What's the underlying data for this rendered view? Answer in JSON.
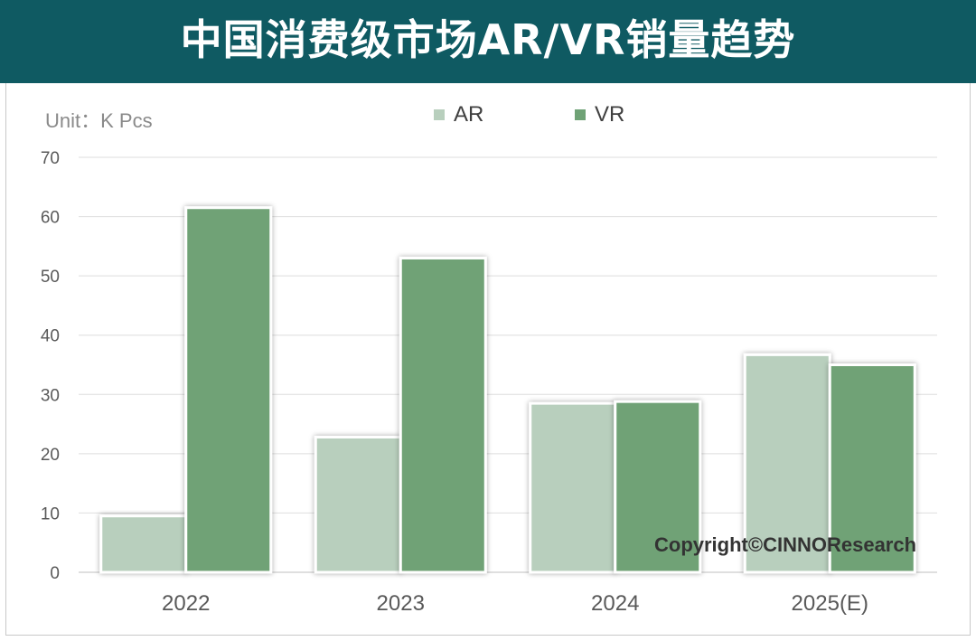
{
  "header": {
    "title": "中国消费级市场AR/VR销量趋势"
  },
  "unit_label": "Unit：K Pcs",
  "watermark": "Copyright©CINNOResearch",
  "colors": {
    "banner": "#0f5a62",
    "AR": "#b8cfbd",
    "VR": "#6fa276"
  },
  "chart_data": {
    "type": "bar",
    "categories": [
      "2022",
      "2023",
      "2024",
      "2025(E)"
    ],
    "series": [
      {
        "name": "AR",
        "values": [
          9.5,
          22.8,
          28.5,
          36.7
        ]
      },
      {
        "name": "VR",
        "values": [
          61.5,
          53.0,
          28.8,
          35.0
        ]
      }
    ],
    "ylim": [
      0,
      70
    ],
    "yticks": [
      0,
      10,
      20,
      30,
      40,
      50,
      60,
      70
    ],
    "grid": true,
    "legend_position": "top-center"
  }
}
